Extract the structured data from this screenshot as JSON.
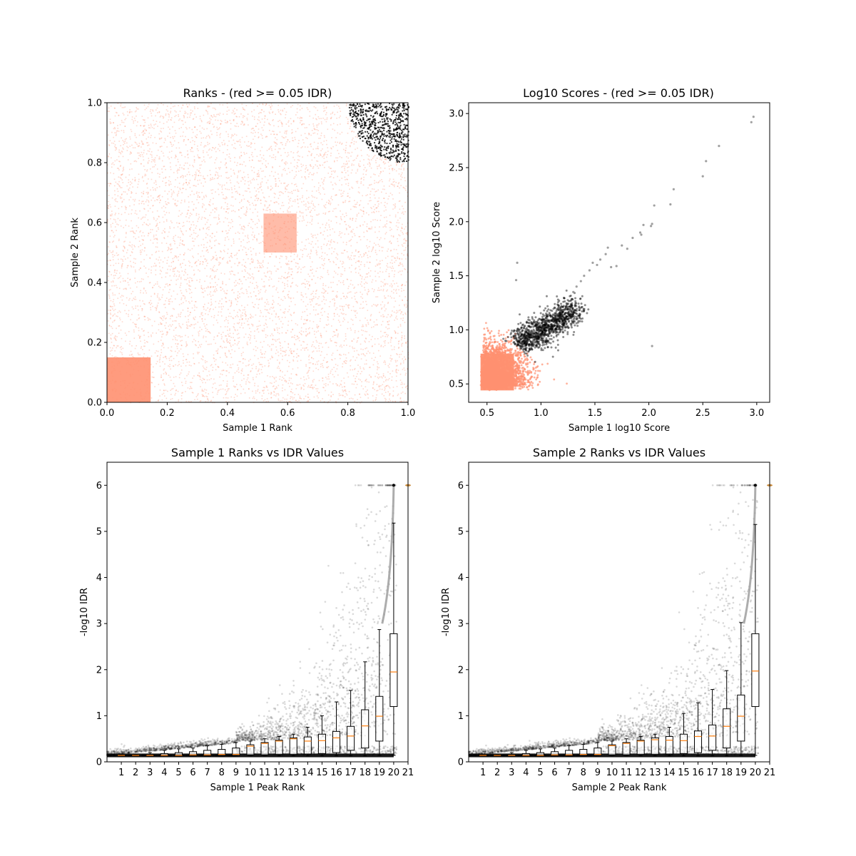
{
  "colors": {
    "accepted": "#000000",
    "rejected": "#ff9070",
    "median": "#ff7f0e",
    "box": "#000000",
    "background": "#ffffff"
  },
  "chart_data": [
    {
      "id": "ranks",
      "type": "scatter",
      "title": "Ranks - (red >= 0.05 IDR)",
      "xlabel": "Sample 1 Rank",
      "ylabel": "Sample 2 Rank",
      "xlim": [
        0.0,
        1.0
      ],
      "ylim": [
        0.0,
        1.0
      ],
      "xticks": [
        "0.0",
        "0.2",
        "0.4",
        "0.6",
        "0.8",
        "1.0"
      ],
      "yticks": [
        "0.0",
        "0.2",
        "0.4",
        "0.6",
        "0.8",
        "1.0"
      ],
      "grid": false,
      "series": [
        {
          "color": "#ff9070",
          "description": "peaks with IDR >= 0.05, spread over [0,1]x[0,1] with dense block at x,y in [0,0.15]"
        },
        {
          "color": "#000000",
          "description": "peaks with IDR < 0.05, top-right corner beyond arc of radius ~0.2 centered at (1,1)"
        }
      ]
    },
    {
      "id": "scores",
      "type": "scatter",
      "title": "Log10 Scores - (red >= 0.05 IDR)",
      "xlabel": "Sample 1 log10 Score",
      "ylabel": "Sample 2 log10 Score",
      "xlim": [
        0.33,
        3.12
      ],
      "ylim": [
        0.33,
        3.1
      ],
      "xticks": [
        "0.5",
        "1.0",
        "1.5",
        "2.0",
        "2.5",
        "3.0"
      ],
      "yticks": [
        "0.5",
        "1.0",
        "1.5",
        "2.0",
        "2.5",
        "3.0"
      ],
      "grid": false,
      "points_high": [
        [
          2.95,
          2.92
        ],
        [
          2.97,
          2.97
        ],
        [
          2.65,
          2.7
        ],
        [
          2.53,
          2.56
        ],
        [
          2.5,
          2.42
        ],
        [
          2.23,
          2.3
        ],
        [
          2.2,
          2.16
        ],
        [
          2.05,
          2.15
        ],
        [
          2.03,
          1.98
        ],
        [
          2.02,
          1.96
        ],
        [
          1.95,
          1.97
        ],
        [
          1.93,
          1.88
        ],
        [
          1.85,
          1.85
        ],
        [
          1.92,
          1.9
        ],
        [
          1.75,
          1.78
        ],
        [
          1.62,
          1.76
        ],
        [
          1.6,
          1.7
        ],
        [
          1.55,
          1.65
        ],
        [
          1.52,
          1.6
        ],
        [
          1.45,
          1.55
        ],
        [
          1.48,
          1.62
        ],
        [
          1.4,
          1.5
        ],
        [
          1.37,
          1.45
        ],
        [
          1.33,
          1.4
        ],
        [
          1.3,
          1.35
        ],
        [
          1.7,
          1.59
        ],
        [
          1.65,
          1.58
        ],
        [
          1.8,
          1.75
        ],
        [
          2.03,
          0.85
        ],
        [
          0.78,
          1.62
        ],
        [
          0.77,
          1.46
        ]
      ]
    },
    {
      "id": "rank1_idr",
      "type": "box",
      "title": "Sample 1 Ranks vs IDR Values",
      "xlabel": "Sample 1 Peak Rank",
      "ylabel": "-log10 IDR",
      "xlim": [
        0,
        21
      ],
      "ylim": [
        0,
        6.5
      ],
      "xticks": [
        "1",
        "2",
        "3",
        "4",
        "5",
        "6",
        "7",
        "8",
        "9",
        "10",
        "11",
        "12",
        "13",
        "14",
        "15",
        "16",
        "17",
        "18",
        "19",
        "20",
        "21"
      ],
      "yticks": [
        "0",
        "1",
        "2",
        "3",
        "4",
        "5",
        "6"
      ],
      "categories": [
        1,
        2,
        3,
        4,
        5,
        6,
        7,
        8,
        9,
        10,
        11,
        12,
        13,
        14,
        15,
        16,
        17,
        18,
        19,
        20
      ],
      "medians": [
        0.14,
        0.14,
        0.14,
        0.14,
        0.14,
        0.15,
        0.15,
        0.16,
        0.16,
        0.34,
        0.4,
        0.45,
        0.5,
        0.45,
        0.46,
        0.52,
        0.56,
        0.78,
        0.99,
        1.95
      ],
      "q1": [
        0.13,
        0.13,
        0.13,
        0.13,
        0.13,
        0.14,
        0.14,
        0.14,
        0.14,
        0.15,
        0.15,
        0.16,
        0.16,
        0.17,
        0.18,
        0.2,
        0.25,
        0.3,
        0.45,
        1.2
      ],
      "q3": [
        0.15,
        0.15,
        0.16,
        0.18,
        0.2,
        0.22,
        0.25,
        0.27,
        0.3,
        0.37,
        0.42,
        0.47,
        0.52,
        0.54,
        0.6,
        0.66,
        0.77,
        1.13,
        1.42,
        2.78
      ],
      "whisker_low": [
        0.13,
        0.13,
        0.13,
        0.13,
        0.13,
        0.13,
        0.13,
        0.13,
        0.13,
        0.13,
        0.13,
        0.13,
        0.13,
        0.13,
        0.13,
        0.13,
        0.13,
        0.13,
        0.14,
        0.14
      ],
      "whisker_high": [
        0.15,
        0.16,
        0.2,
        0.25,
        0.28,
        0.3,
        0.35,
        0.38,
        0.42,
        0.45,
        0.5,
        0.55,
        0.6,
        0.75,
        1.0,
        1.3,
        1.55,
        2.17,
        2.87,
        5.18
      ],
      "outlier_max": 6.0
    },
    {
      "id": "rank2_idr",
      "type": "box",
      "title": "Sample 2 Ranks vs IDR Values",
      "xlabel": "Sample 2 Peak Rank",
      "ylabel": "-log10 IDR",
      "xlim": [
        0,
        21
      ],
      "ylim": [
        0,
        6.5
      ],
      "xticks": [
        "1",
        "2",
        "3",
        "4",
        "5",
        "6",
        "7",
        "8",
        "9",
        "10",
        "11",
        "12",
        "13",
        "14",
        "15",
        "16",
        "17",
        "18",
        "19",
        "20",
        "21"
      ],
      "yticks": [
        "0",
        "1",
        "2",
        "3",
        "4",
        "5",
        "6"
      ],
      "categories": [
        1,
        2,
        3,
        4,
        5,
        6,
        7,
        8,
        9,
        10,
        11,
        12,
        13,
        14,
        15,
        16,
        17,
        18,
        19,
        20
      ],
      "medians": [
        0.14,
        0.14,
        0.14,
        0.14,
        0.14,
        0.15,
        0.15,
        0.16,
        0.16,
        0.35,
        0.4,
        0.45,
        0.48,
        0.47,
        0.46,
        0.55,
        0.56,
        0.77,
        0.99,
        1.97
      ],
      "q1": [
        0.13,
        0.13,
        0.13,
        0.13,
        0.13,
        0.14,
        0.14,
        0.14,
        0.14,
        0.15,
        0.15,
        0.16,
        0.16,
        0.17,
        0.18,
        0.2,
        0.25,
        0.3,
        0.45,
        1.2
      ],
      "q3": [
        0.15,
        0.15,
        0.16,
        0.18,
        0.2,
        0.22,
        0.25,
        0.27,
        0.3,
        0.37,
        0.42,
        0.47,
        0.52,
        0.55,
        0.6,
        0.67,
        0.8,
        1.15,
        1.45,
        2.78
      ],
      "whisker_low": [
        0.13,
        0.13,
        0.13,
        0.13,
        0.13,
        0.13,
        0.13,
        0.13,
        0.13,
        0.13,
        0.13,
        0.13,
        0.13,
        0.13,
        0.13,
        0.13,
        0.13,
        0.13,
        0.14,
        0.14
      ],
      "whisker_high": [
        0.15,
        0.16,
        0.2,
        0.25,
        0.28,
        0.3,
        0.35,
        0.38,
        0.42,
        0.45,
        0.5,
        0.55,
        0.6,
        0.75,
        1.05,
        1.28,
        1.57,
        1.98,
        3.02,
        5.15
      ],
      "outlier_max": 6.0
    }
  ]
}
